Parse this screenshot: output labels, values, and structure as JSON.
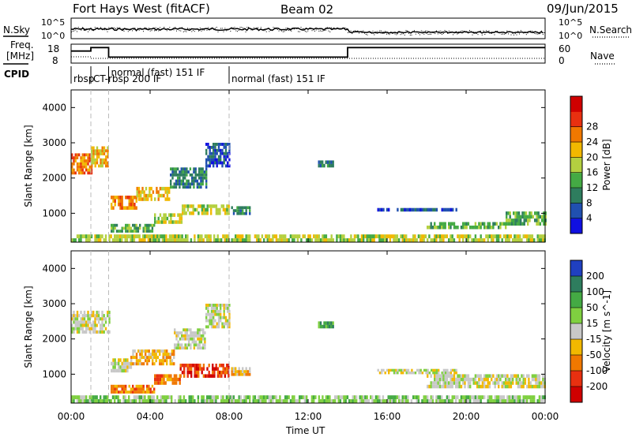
{
  "header": {
    "station": "Fort Hays West (fitACF)",
    "beam": "Beam 02",
    "date": "09/Jun/2015"
  },
  "top_panels": {
    "nsky_label": "N.Sky",
    "nsearch_label": "N.Search",
    "freq_label_line1": "Freq.",
    "freq_label_line2": "[MHz]",
    "nave_label": "Nave",
    "cpid_label": "CPID",
    "freq_ticks": [
      "18",
      "8"
    ],
    "nave_ticks": [
      "60",
      "0"
    ],
    "noise_ticks": [
      "10^5",
      "10^0"
    ],
    "cpid_segments": [
      {
        "label": "rbsp",
        "start_hour": 0.0
      },
      {
        "label": "CT-rbsp 200 IF",
        "start_hour": 1.0
      },
      {
        "label": "normal (fast) 151 IF",
        "start_hour": 1.9
      },
      {
        "label": "normal (fast) 151 IF",
        "start_hour": 8.0
      }
    ],
    "freq_steps": [
      {
        "start_hour": 0.0,
        "end_hour": 1.0,
        "mhz": 14.5
      },
      {
        "start_hour": 1.0,
        "end_hour": 1.9,
        "mhz": 16.5
      },
      {
        "start_hour": 1.9,
        "end_hour": 14.0,
        "mhz": 11.0
      },
      {
        "start_hour": 14.0,
        "end_hour": 24.0,
        "mhz": 16.5
      }
    ]
  },
  "chart_data": [
    {
      "type": "heatmap",
      "panel": "power",
      "ylabel": "Slant Range [km]",
      "xlabel": "Time UT",
      "ylim": [
        180,
        4500
      ],
      "yticks": [
        1000,
        2000,
        3000,
        4000
      ],
      "xticks": [
        "00:00",
        "04:00",
        "08:00",
        "12:00",
        "16:00",
        "20:00",
        "00:00"
      ],
      "xtick_hours": [
        0,
        4,
        8,
        12,
        16,
        20,
        24
      ],
      "colorbar_label": "Power [dB]",
      "colorbar_ticks": [
        "4",
        "8",
        "12",
        "16",
        "20",
        "24",
        "28"
      ],
      "colorbar_colors": [
        "#1010e0",
        "#2050b0",
        "#2e7d5e",
        "#44aa44",
        "#b4d040",
        "#f2b800",
        "#f07800",
        "#e83010",
        "#d00000"
      ],
      "regions": [
        {
          "t0": 0.0,
          "t1": 1.0,
          "r0": 2100,
          "r1": 2700,
          "level": 6
        },
        {
          "t0": 1.0,
          "t1": 1.9,
          "r0": 2300,
          "r1": 2900,
          "level": 5
        },
        {
          "t0": 2.0,
          "t1": 3.3,
          "r0": 1100,
          "r1": 1500,
          "level": 6
        },
        {
          "t0": 3.3,
          "t1": 5.0,
          "r0": 1350,
          "r1": 1750,
          "level": 5
        },
        {
          "t0": 5.0,
          "t1": 6.8,
          "r0": 1700,
          "r1": 2300,
          "level": 2
        },
        {
          "t0": 6.8,
          "t1": 8.0,
          "r0": 2300,
          "r1": 3000,
          "level": 1
        },
        {
          "t0": 2.0,
          "t1": 4.2,
          "r0": 450,
          "r1": 700,
          "level": 3
        },
        {
          "t0": 4.2,
          "t1": 5.6,
          "r0": 700,
          "r1": 1000,
          "level": 4
        },
        {
          "t0": 5.6,
          "t1": 8.0,
          "r0": 950,
          "r1": 1250,
          "level": 4
        },
        {
          "t0": 8.1,
          "t1": 9.0,
          "r0": 950,
          "r1": 1200,
          "level": 2
        },
        {
          "t0": 12.5,
          "t1": 13.3,
          "r0": 2300,
          "r1": 2500,
          "level": 2
        },
        {
          "t0": 18.0,
          "t1": 22.0,
          "r0": 550,
          "r1": 750,
          "level": 3
        },
        {
          "t0": 22.0,
          "t1": 24.0,
          "r0": 650,
          "r1": 1050,
          "level": 3
        },
        {
          "t0": 15.5,
          "t1": 19.5,
          "r0": 1050,
          "r1": 1150,
          "level": 1
        },
        {
          "t0": 0.0,
          "t1": 24.0,
          "r0": 180,
          "r1": 400,
          "level": 4
        }
      ]
    },
    {
      "type": "heatmap",
      "panel": "velocity",
      "ylabel": "Slant Range [km]",
      "xlabel": "Time UT",
      "ylim": [
        180,
        4500
      ],
      "yticks": [
        1000,
        2000,
        3000,
        4000
      ],
      "xticks": [
        "00:00",
        "04:00",
        "08:00",
        "12:00",
        "16:00",
        "20:00",
        "00:00"
      ],
      "xtick_hours": [
        0,
        4,
        8,
        12,
        16,
        20,
        24
      ],
      "colorbar_label": "Velocity [m s^-1]",
      "colorbar_ticks": [
        "200",
        "100",
        "50",
        "15",
        "-15",
        "-50",
        "-100",
        "-200"
      ],
      "colorbar_colors": [
        "#2040c0",
        "#2e7d5e",
        "#44aa44",
        "#7fd040",
        "#c8c8c8",
        "#f2b800",
        "#f07800",
        "#e83010",
        "#d00000"
      ],
      "regions": [
        {
          "t0": 0.0,
          "t1": 1.9,
          "r0": 2150,
          "r1": 2800,
          "level": 4
        },
        {
          "t0": 2.0,
          "t1": 3.0,
          "r0": 1050,
          "r1": 1450,
          "level": 4
        },
        {
          "t0": 3.0,
          "t1": 5.2,
          "r0": 1250,
          "r1": 1700,
          "level": 5
        },
        {
          "t0": 5.2,
          "t1": 6.8,
          "r0": 1700,
          "r1": 2300,
          "level": 4
        },
        {
          "t0": 6.8,
          "t1": 8.0,
          "r0": 2300,
          "r1": 3000,
          "level": 4
        },
        {
          "t0": 2.0,
          "t1": 4.2,
          "r0": 450,
          "r1": 700,
          "level": 6
        },
        {
          "t0": 4.2,
          "t1": 5.5,
          "r0": 700,
          "r1": 1000,
          "level": 6
        },
        {
          "t0": 5.5,
          "t1": 8.0,
          "r0": 900,
          "r1": 1300,
          "level": 7
        },
        {
          "t0": 8.1,
          "t1": 9.0,
          "r0": 950,
          "r1": 1200,
          "level": 5
        },
        {
          "t0": 12.5,
          "t1": 13.3,
          "r0": 2300,
          "r1": 2500,
          "level": 2
        },
        {
          "t0": 15.5,
          "t1": 19.5,
          "r0": 1000,
          "r1": 1150,
          "level": 4
        },
        {
          "t0": 18.0,
          "t1": 24.0,
          "r0": 600,
          "r1": 1000,
          "level": 4
        },
        {
          "t0": 0.0,
          "t1": 24.0,
          "r0": 180,
          "r1": 400,
          "level": 3
        }
      ]
    }
  ]
}
